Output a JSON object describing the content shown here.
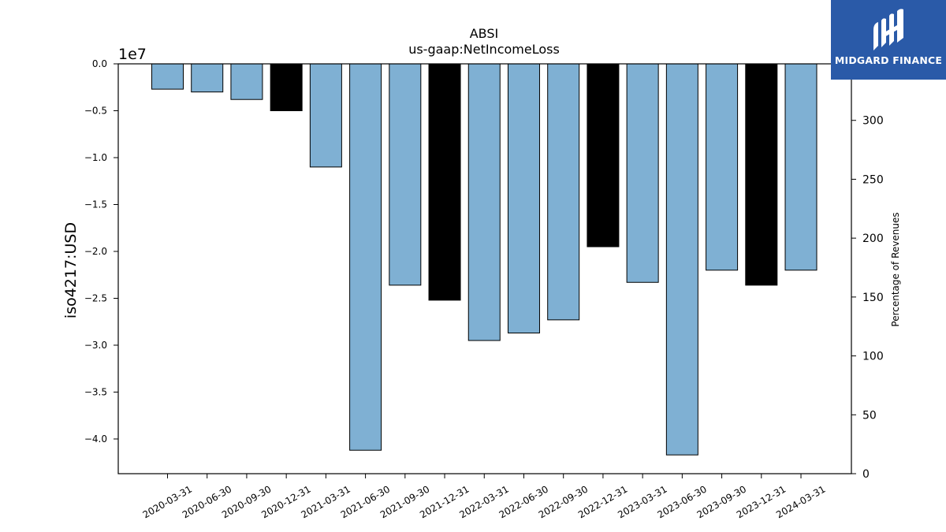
{
  "chart_data": {
    "type": "bar",
    "title": "ABSI",
    "subtitle": "us-gaap:NetIncomeLoss",
    "ylabel": "iso4217:USD",
    "y_offset_label": "1e7",
    "y2label": "Percentage of Revenues",
    "categories": [
      "2020-03-31",
      "2020-06-30",
      "2020-09-30",
      "2020-12-31",
      "2021-03-31",
      "2021-06-30",
      "2021-09-30",
      "2021-12-31",
      "2022-03-31",
      "2022-06-30",
      "2022-09-30",
      "2022-12-31",
      "2023-03-31",
      "2023-06-30",
      "2023-09-30",
      "2023-12-31",
      "2024-03-31"
    ],
    "values": [
      -2700000,
      -3000000,
      -3800000,
      -5000000,
      -11000000,
      -41200000,
      -23600000,
      -25200000,
      -29500000,
      -28700000,
      -27300000,
      -19500000,
      -23300000,
      -41700000,
      -22000000,
      -23600000,
      -22000000
    ],
    "highlight": [
      false,
      false,
      false,
      true,
      false,
      false,
      false,
      true,
      false,
      false,
      false,
      true,
      false,
      false,
      false,
      true,
      false
    ],
    "ylim": [
      -43700000,
      0
    ],
    "yticks": [
      0,
      -5000000,
      -10000000,
      -15000000,
      -20000000,
      -25000000,
      -30000000,
      -35000000,
      -40000000
    ],
    "ytick_labels": [
      "0.0",
      "−0.5",
      "−1.0",
      "−1.5",
      "−2.0",
      "−2.5",
      "−3.0",
      "−3.5",
      "−4.0"
    ],
    "y2lim": [
      0,
      348
    ],
    "y2ticks": [
      0,
      50,
      100,
      150,
      200,
      250,
      300
    ],
    "y2tick_labels": [
      "0",
      "50",
      "100",
      "150",
      "200",
      "250",
      "300"
    ],
    "colors": {
      "bar": "#7fb0d3",
      "highlight": "#000000",
      "edge": "#000000"
    },
    "grid": false,
    "legend": "none"
  },
  "logo": {
    "text": "MIDGARD FINANCE",
    "icon": "midgard-logo-icon"
  }
}
